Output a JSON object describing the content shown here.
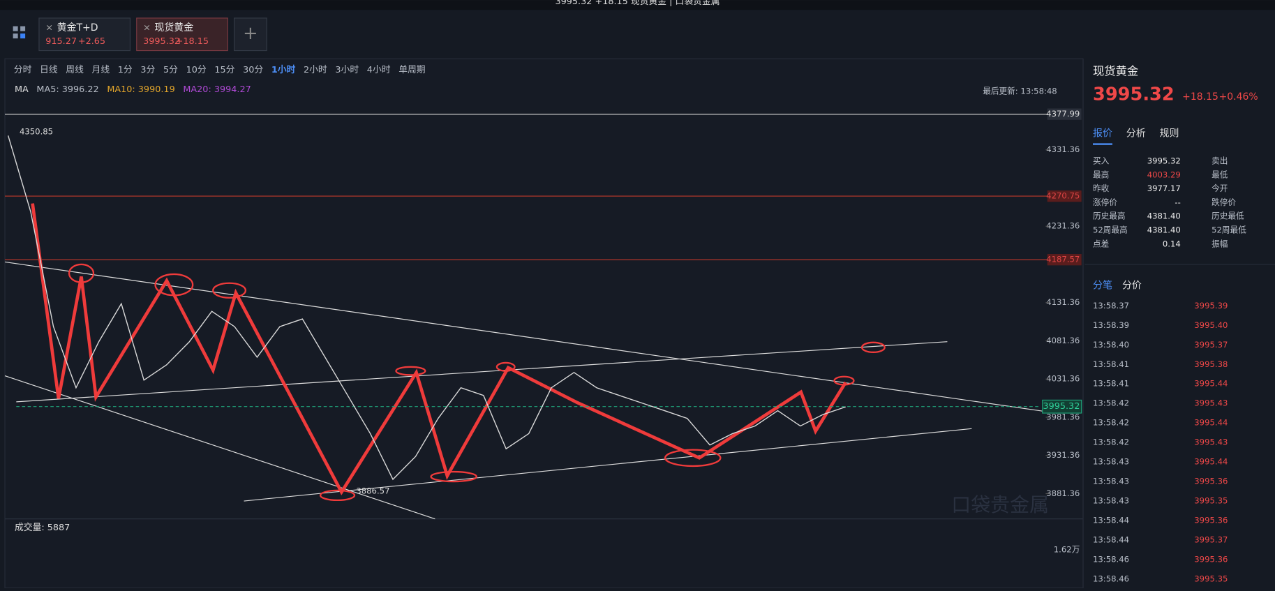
{
  "window_title": "3995.32 +18.15 现货黄金 | 口袋贵金属",
  "tabs": [
    {
      "name": "黄金T+D",
      "price": "915.27",
      "change": "+2.65"
    },
    {
      "name": "现货黄金",
      "price": "3995.32",
      "change": "+18.15"
    }
  ],
  "periods": [
    "分时",
    "日线",
    "周线",
    "月线",
    "1分",
    "3分",
    "5分",
    "10分",
    "15分",
    "30分",
    "1小时",
    "2小时",
    "3小时",
    "4小时",
    "单周期"
  ],
  "ma": {
    "label": "MA",
    "items": [
      "MA5: 3996.22",
      "MA10: 3990.19",
      "MA20: 3994.27"
    ]
  },
  "last_update": "最后更新: 13:58:48",
  "chart_data": {
    "type": "line",
    "series": [
      {
        "name": "现货黄金",
        "color": "#d9d9d9",
        "values": [
          4350,
          4250,
          4100,
          4020,
          4080,
          4130,
          4030,
          4050,
          4080,
          4120,
          4100,
          4060,
          4100,
          4110,
          4060,
          4010,
          3960,
          3900,
          3930,
          3980,
          4020,
          4010,
          3940,
          3960,
          4020,
          4040,
          4020,
          4010,
          4000,
          3990,
          3980,
          3945,
          3960,
          3970,
          3990,
          3970,
          3985,
          3995
        ]
      }
    ],
    "ylim": [
      3849.4,
      4378.2
    ],
    "yticks": [
      4331.36,
      4231.36,
      4131.36,
      4081.36,
      4031.36,
      3981.36,
      3931.36,
      3881.36
    ],
    "levels": [
      {
        "value": 4377.99,
        "color": "#cccccc"
      },
      {
        "value": 4270.75,
        "color": "#c0392b"
      },
      {
        "value": 4187.57,
        "color": "#c0392b"
      }
    ],
    "current": 3995.32,
    "high_label": "4350.85",
    "low_label": "3886.57"
  },
  "volume": {
    "label": "成交量: 5887",
    "max_label": "1.62万"
  },
  "watermark": "口袋贵金属",
  "side": {
    "title": "现货黄金",
    "price": "3995.32",
    "change": "+18.15",
    "pct": "+0.46%",
    "tabs": [
      "报价",
      "分析",
      "规则"
    ],
    "quote": [
      [
        "买入",
        "3995.32",
        "卖出"
      ],
      [
        "最高",
        "4003.29",
        "最低"
      ],
      [
        "昨收",
        "3977.17",
        "今开"
      ],
      [
        "涨停价",
        "--",
        "跌停价"
      ],
      [
        "历史最高",
        "4381.40",
        "历史最低"
      ],
      [
        "52周最高",
        "4381.40",
        "52周最低"
      ],
      [
        "点差",
        "0.14",
        "振幅"
      ]
    ],
    "trade_tabs": [
      "分笔",
      "分价"
    ],
    "trades": [
      [
        "13:58.37",
        "3995.39"
      ],
      [
        "13:58.39",
        "3995.40"
      ],
      [
        "13:58.40",
        "3995.37"
      ],
      [
        "13:58.41",
        "3995.38"
      ],
      [
        "13:58.41",
        "3995.44"
      ],
      [
        "13:58.42",
        "3995.43"
      ],
      [
        "13:58.42",
        "3995.44"
      ],
      [
        "13:58.42",
        "3995.43"
      ],
      [
        "13:58.43",
        "3995.44"
      ],
      [
        "13:58.43",
        "3995.36"
      ],
      [
        "13:58.43",
        "3995.35"
      ],
      [
        "13:58.44",
        "3995.36"
      ],
      [
        "13:58.44",
        "3995.37"
      ],
      [
        "13:58.46",
        "3995.36"
      ],
      [
        "13:58.46",
        "3995.35"
      ]
    ]
  }
}
